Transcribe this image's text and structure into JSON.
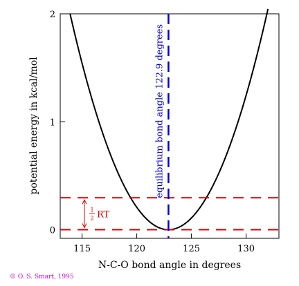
{
  "chart_data": {
    "type": "line",
    "xlabel": "N-C-O bond angle in degrees",
    "ylabel": "potential energy in kcal/mol",
    "xlim": [
      113,
      133
    ],
    "ylim": [
      -0.08,
      2.0
    ],
    "xticks": [
      115,
      120,
      125,
      130
    ],
    "yticks": [
      0,
      1,
      2
    ],
    "series": [
      {
        "name": "",
        "type": "parabola",
        "equilibrium_angle": 122.9,
        "min_energy": 0,
        "force_constant": 0.0247,
        "x_range": [
          113.9,
          132.0
        ],
        "color": "#000000"
      }
    ],
    "annotations": {
      "equilibrium_line": {
        "x": 122.9,
        "label": "equilibrium bond angle 122.9 degrees",
        "color": "#0000dd"
      },
      "rt_lines": {
        "y": [
          0,
          0.296
        ],
        "label_fraction_num": "1",
        "label_fraction_den": "2",
        "label_suffix": "RT",
        "color": "#dd0000"
      }
    },
    "grid": false
  },
  "copyright": {
    "text": "© O. S. Smart, 1995",
    "color": "#cc00cc"
  }
}
